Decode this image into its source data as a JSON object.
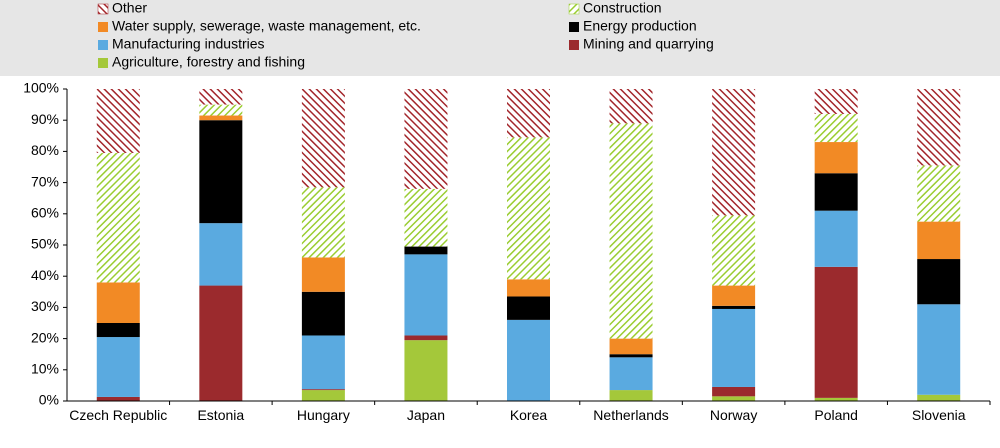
{
  "chart_data": {
    "type": "stacked_bar",
    "categories": [
      "Czech Republic",
      "Estonia",
      "Hungary",
      "Japan",
      "Korea",
      "Netherlands",
      "Norway",
      "Poland",
      "Slovenia"
    ],
    "series": [
      {
        "name": "Agriculture, forestry and fishing",
        "color": "#a4c83a",
        "hatched": false,
        "values": [
          0,
          0,
          3.5,
          19.5,
          0,
          3.5,
          1.5,
          1,
          2
        ]
      },
      {
        "name": "Mining and quarrying",
        "color": "#9b2a2d",
        "hatched": false,
        "values": [
          1.3,
          37,
          0.3,
          1.5,
          0,
          0,
          3,
          42,
          0
        ]
      },
      {
        "name": "Manufacturing industries",
        "color": "#5aaae0",
        "hatched": false,
        "values": [
          19.2,
          20,
          17.2,
          26,
          26,
          10.5,
          25,
          18,
          29
        ]
      },
      {
        "name": "Energy production",
        "color": "#000000",
        "hatched": false,
        "values": [
          4.5,
          33,
          14,
          2.5,
          7.5,
          1,
          1,
          12,
          14.5
        ]
      },
      {
        "name": "Water supply, sewerage, waste management, etc.",
        "color": "#f28a25",
        "hatched": false,
        "values": [
          13,
          1.5,
          11,
          0,
          5.5,
          5,
          6.5,
          10,
          12
        ]
      },
      {
        "name": "Construction",
        "color": "#9acd32",
        "hatched": true,
        "values": [
          41.5,
          3.5,
          22.5,
          18.5,
          45.5,
          69,
          22.5,
          9,
          18
        ]
      },
      {
        "name": "Other",
        "color": "#a3262b",
        "hatched": true,
        "values": [
          20.5,
          5,
          31.5,
          32,
          15.5,
          11,
          40.5,
          8,
          24.5
        ]
      }
    ],
    "ylim": [
      0,
      100
    ],
    "yticks": [
      {
        "value": 0,
        "label": "0%"
      },
      {
        "value": 10,
        "label": "10%"
      },
      {
        "value": 20,
        "label": "20%"
      },
      {
        "value": 30,
        "label": "30%"
      },
      {
        "value": 40,
        "label": "40%"
      },
      {
        "value": 50,
        "label": "50%"
      },
      {
        "value": 60,
        "label": "60%"
      },
      {
        "value": 70,
        "label": "70%"
      },
      {
        "value": 80,
        "label": "80%"
      },
      {
        "value": 90,
        "label": "90%"
      },
      {
        "value": 100,
        "label": "100%"
      }
    ],
    "grid": false
  }
}
